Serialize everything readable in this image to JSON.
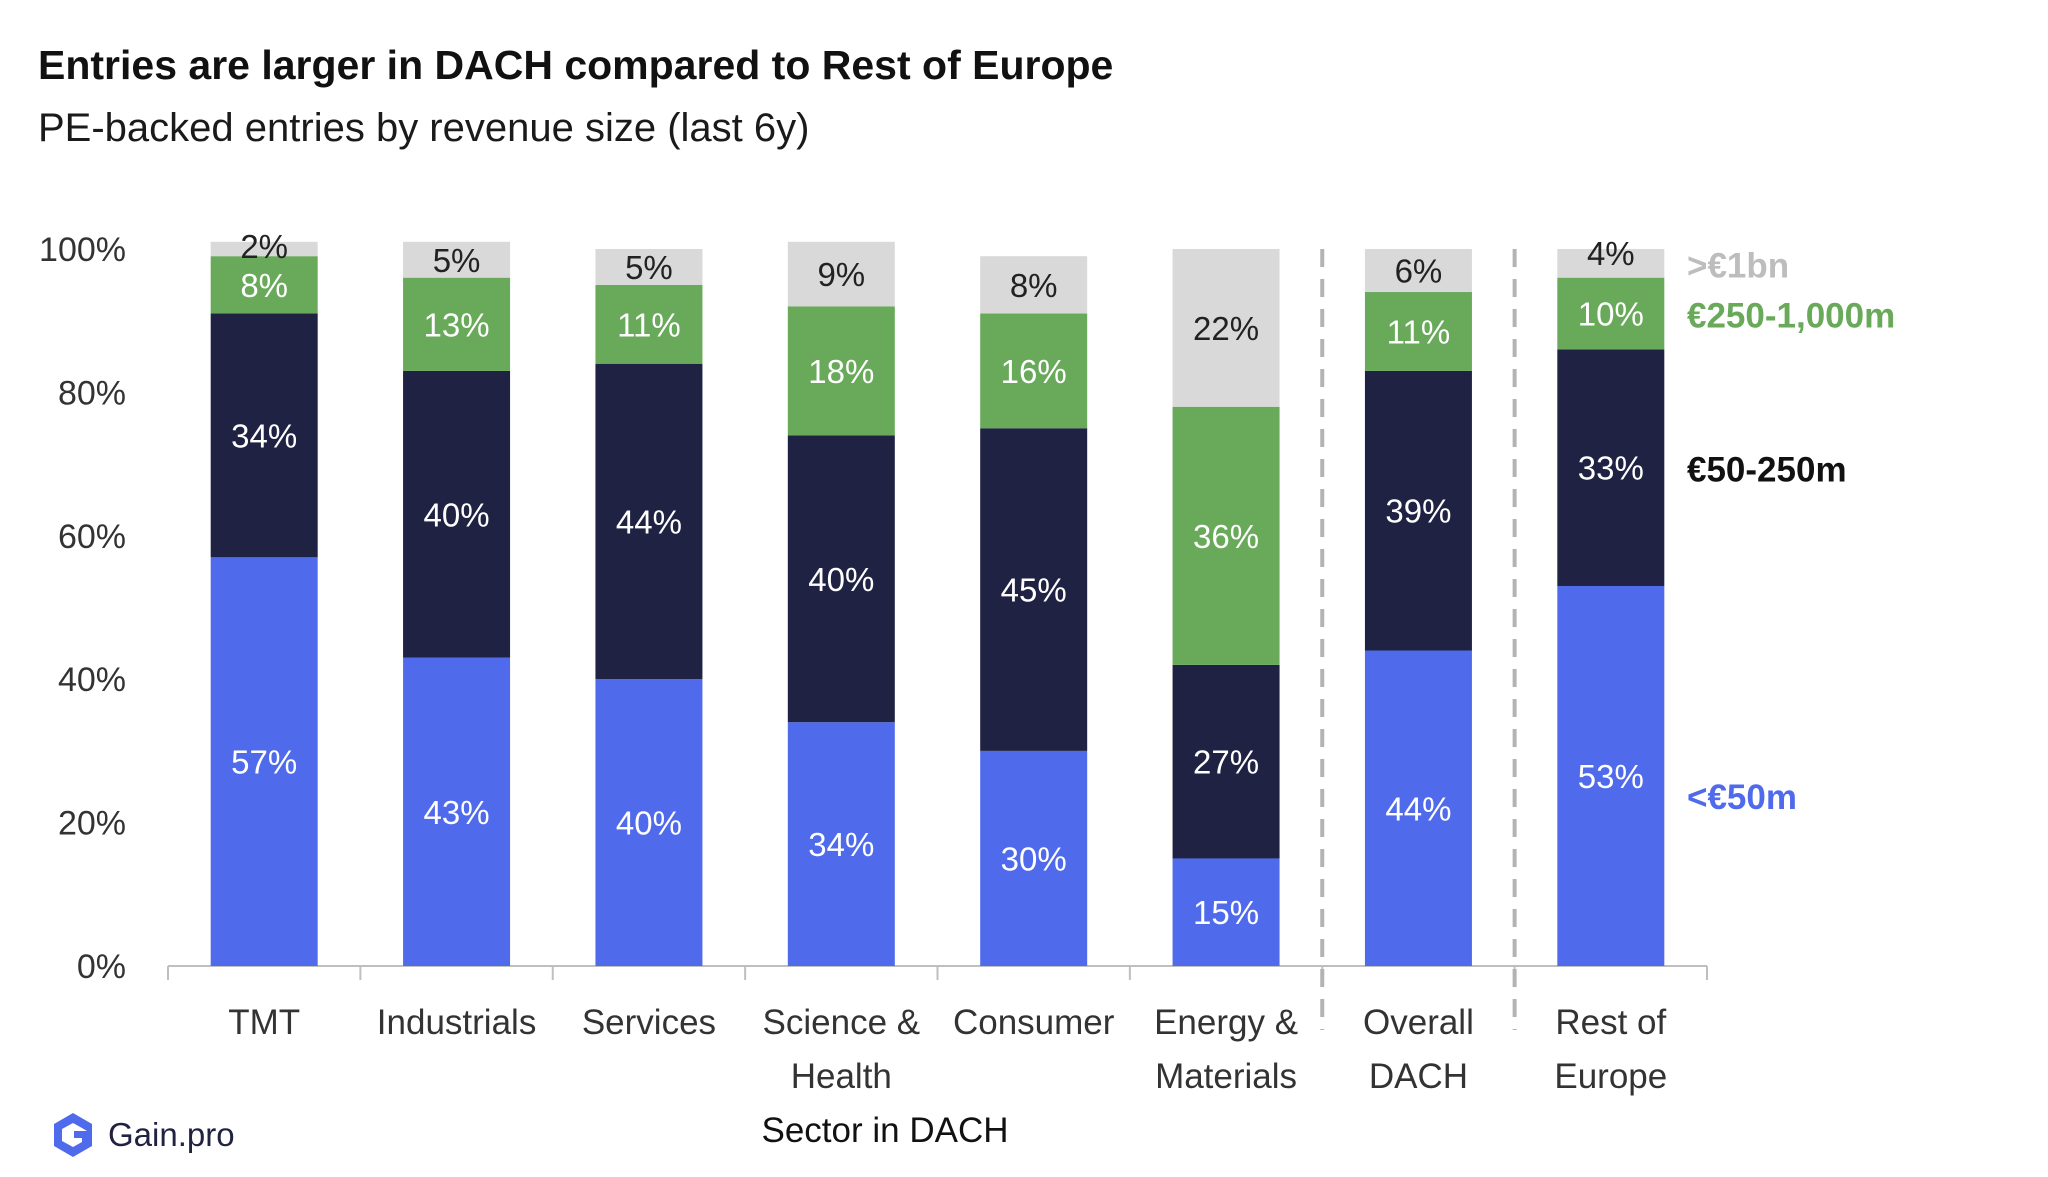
{
  "chart_data": {
    "type": "bar",
    "stacked": true,
    "title": "Entries are larger in DACH compared to Rest of Europe",
    "subtitle": "PE-backed entries by revenue size  (last 6y)",
    "xlabel": "Sector in DACH",
    "ylabel": "",
    "ylim": [
      0,
      100
    ],
    "yticks": [
      "0%",
      "20%",
      "40%",
      "60%",
      "80%",
      "100%"
    ],
    "ytick_values": [
      0,
      20,
      40,
      60,
      80,
      100
    ],
    "categories": [
      [
        "TMT"
      ],
      [
        "Industrials"
      ],
      [
        "Services"
      ],
      [
        "Science &",
        "Health"
      ],
      [
        "Consumer"
      ],
      [
        "Energy &",
        "Materials"
      ],
      [
        "Overall",
        "DACH"
      ],
      [
        "Rest of",
        "Europe"
      ]
    ],
    "separators_after": [
      5,
      6
    ],
    "series": [
      {
        "name": "<€50m",
        "color": "#4f6bec",
        "label_color": "#ffffff",
        "values": [
          57,
          43,
          40,
          34,
          30,
          15,
          44,
          53
        ],
        "labels": [
          "57%",
          "43%",
          "40%",
          "34%",
          "30%",
          "15%",
          "44%",
          "53%"
        ]
      },
      {
        "name": "€50-250m",
        "color": "#1f2243",
        "label_color": "#ffffff",
        "values": [
          34,
          40,
          44,
          40,
          45,
          27,
          39,
          33
        ],
        "labels": [
          "34%",
          "40%",
          "44%",
          "40%",
          "45%",
          "27%",
          "39%",
          "33%"
        ]
      },
      {
        "name": "€250-1,000m",
        "color": "#68a95a",
        "label_color": "#ffffff",
        "values": [
          8,
          13,
          11,
          18,
          16,
          36,
          11,
          10
        ],
        "labels": [
          "8%",
          "13%",
          "11%",
          "18%",
          "16%",
          "36%",
          "11%",
          "10%"
        ]
      },
      {
        "name": ">€1bn",
        "color": "#d9d9d9",
        "label_color": "#222222",
        "values": [
          2,
          5,
          5,
          9,
          8,
          22,
          6,
          4
        ],
        "labels": [
          "2%",
          "5%",
          "5%",
          "9%",
          "8%",
          "22%",
          "6%",
          "4%"
        ]
      }
    ],
    "legend_placement": "right, aligned with last bar",
    "legend": [
      {
        "label": ">€1bn",
        "color": "#bdbdbd"
      },
      {
        "label": "€250-1,000m",
        "color": "#68a95a"
      },
      {
        "label": "€50-250m",
        "color": "#111111"
      },
      {
        "label": "<€50m",
        "color": "#4f6bec"
      }
    ],
    "grid": false
  },
  "brand": {
    "name": "Gain.pro",
    "logo_color": "#4f6bec"
  }
}
